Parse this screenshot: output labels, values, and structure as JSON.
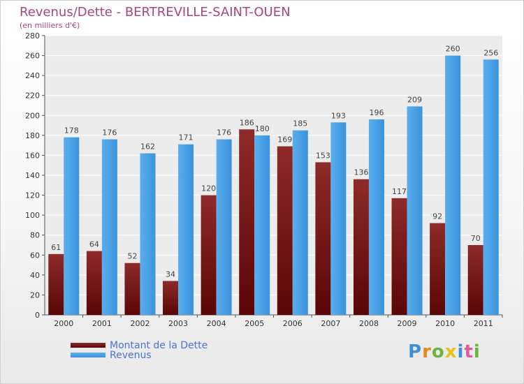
{
  "chart_data": {
    "type": "bar",
    "title": "Revenus/Dette - BERTREVILLE-SAINT-OUEN",
    "subtitle": "(en milliers d'€)",
    "categories": [
      "2000",
      "2001",
      "2002",
      "2003",
      "2004",
      "2005",
      "2006",
      "2007",
      "2008",
      "2009",
      "2010",
      "2011"
    ],
    "series": [
      {
        "name": "Montant de la Dette",
        "color": "#7a1414",
        "values": [
          61,
          64,
          52,
          34,
          120,
          186,
          169,
          153,
          136,
          117,
          92,
          70
        ]
      },
      {
        "name": "Revenus",
        "color": "#4da3e8",
        "values": [
          178,
          176,
          162,
          171,
          176,
          180,
          185,
          193,
          196,
          209,
          260,
          256
        ]
      }
    ],
    "ylim": [
      0,
      280
    ],
    "yticks": [
      0,
      20,
      40,
      60,
      80,
      100,
      120,
      140,
      160,
      180,
      200,
      220,
      240,
      260,
      280
    ],
    "grid": true,
    "legend": "bottom-left"
  },
  "logo": {
    "letters": [
      "P",
      "r",
      "o",
      "x",
      "i",
      "t",
      "i"
    ],
    "colors": [
      "#3f8fd6",
      "#e68a1c",
      "#6db33f",
      "#e8c21a",
      "#3f8fd6",
      "#e05a9c",
      "#6db33f"
    ]
  }
}
